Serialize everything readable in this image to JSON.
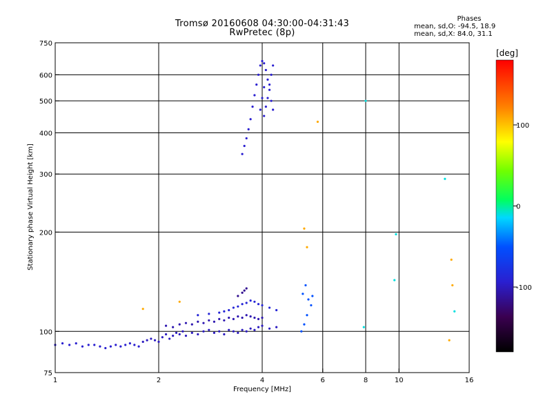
{
  "chart_data": {
    "type": "scatter",
    "title": "Tromsø 20160608 04:30:00-04:31:43",
    "subtitle": "RwPretec (8p)",
    "stats": {
      "heading": "Phases",
      "line_o": "mean, sd,O: -94.5, 18.9",
      "line_x": "mean, sd,X: 84.0, 31.1"
    },
    "xlabel": "Frequency [MHz]",
    "ylabel": "Stationary phase Virtual Height [km]",
    "x_scale": "log",
    "y_scale": "log",
    "xlim": [
      1,
      16
    ],
    "ylim": [
      75,
      750
    ],
    "x_ticks": [
      1,
      2,
      4,
      6,
      8,
      10,
      16
    ],
    "x_tick_labels": [
      "1",
      "2",
      "4",
      "6",
      "8",
      "10",
      "16"
    ],
    "y_ticks": [
      75,
      100,
      200,
      300,
      400,
      500,
      600,
      750
    ],
    "y_tick_labels": [
      "75",
      "100",
      "200",
      "300",
      "400",
      "500",
      "600",
      "750"
    ],
    "grid": true,
    "colorbar": {
      "label": "[deg]",
      "range": [
        -180,
        180
      ],
      "ticks": [
        100,
        0,
        -100
      ],
      "tick_labels": [
        "100",
        "0",
        "-100"
      ]
    },
    "series": [
      {
        "points": [
          [
            1.0,
            91
          ],
          [
            1.05,
            92
          ],
          [
            1.1,
            91
          ],
          [
            1.15,
            92
          ],
          [
            1.2,
            90
          ],
          [
            1.25,
            91
          ],
          [
            1.3,
            91
          ],
          [
            1.35,
            90
          ],
          [
            1.4,
            89
          ],
          [
            1.45,
            90
          ],
          [
            1.5,
            91
          ],
          [
            1.55,
            90
          ],
          [
            1.6,
            91
          ],
          [
            1.65,
            92
          ],
          [
            1.7,
            91
          ],
          [
            1.75,
            90
          ]
        ],
        "phase": -100
      },
      {
        "points": [
          [
            1.8,
            93
          ],
          [
            1.85,
            94
          ],
          [
            1.9,
            95
          ],
          [
            1.95,
            94
          ],
          [
            2.0,
            93
          ],
          [
            2.05,
            96
          ],
          [
            2.1,
            98
          ],
          [
            2.15,
            95
          ],
          [
            2.2,
            97
          ],
          [
            2.25,
            99
          ],
          [
            2.3,
            98
          ],
          [
            2.35,
            100
          ],
          [
            2.4,
            97
          ],
          [
            2.5,
            99
          ],
          [
            2.6,
            98
          ],
          [
            2.7,
            100
          ],
          [
            2.8,
            101
          ],
          [
            2.9,
            99
          ],
          [
            3.0,
            100
          ],
          [
            3.1,
            98
          ],
          [
            3.2,
            101
          ],
          [
            3.3,
            100
          ],
          [
            3.4,
            99
          ],
          [
            3.5,
            101
          ],
          [
            3.6,
            100
          ],
          [
            3.7,
            102
          ],
          [
            3.8,
            101
          ],
          [
            3.9,
            103
          ],
          [
            4.0,
            104
          ],
          [
            4.2,
            102
          ],
          [
            4.4,
            103
          ]
        ],
        "phase": -105
      },
      {
        "points": [
          [
            2.1,
            104
          ],
          [
            2.2,
            103
          ],
          [
            2.3,
            105
          ],
          [
            2.4,
            106
          ],
          [
            2.5,
            105
          ],
          [
            2.6,
            107
          ],
          [
            2.7,
            106
          ],
          [
            2.8,
            108
          ],
          [
            2.9,
            107
          ],
          [
            3.0,
            109
          ],
          [
            3.1,
            108
          ],
          [
            3.2,
            110
          ],
          [
            3.3,
            109
          ],
          [
            3.4,
            111
          ],
          [
            3.5,
            110
          ],
          [
            3.6,
            112
          ],
          [
            3.7,
            111
          ],
          [
            3.8,
            110
          ],
          [
            3.9,
            109
          ],
          [
            4.0,
            110
          ]
        ],
        "phase": -110
      },
      {
        "points": [
          [
            2.6,
            112
          ],
          [
            2.8,
            113
          ],
          [
            3.0,
            114
          ],
          [
            3.1,
            115
          ],
          [
            3.2,
            116
          ],
          [
            3.3,
            118
          ],
          [
            3.4,
            119
          ],
          [
            3.5,
            121
          ],
          [
            3.6,
            122
          ],
          [
            3.7,
            124
          ],
          [
            3.8,
            123
          ],
          [
            3.9,
            121
          ],
          [
            4.0,
            120
          ],
          [
            4.2,
            118
          ],
          [
            4.4,
            116
          ]
        ],
        "phase": -95
      },
      {
        "points": [
          [
            3.4,
            128
          ],
          [
            3.5,
            131
          ],
          [
            3.55,
            133
          ],
          [
            3.6,
            135
          ]
        ],
        "phase": -120
      },
      {
        "points": [
          [
            3.5,
            345
          ],
          [
            3.55,
            365
          ],
          [
            3.6,
            385
          ],
          [
            3.65,
            410
          ],
          [
            3.7,
            440
          ],
          [
            3.75,
            480
          ],
          [
            3.8,
            520
          ],
          [
            3.85,
            560
          ],
          [
            3.9,
            600
          ],
          [
            3.95,
            640
          ],
          [
            4.0,
            660
          ],
          [
            4.05,
            650
          ],
          [
            4.1,
            620
          ],
          [
            4.15,
            580
          ],
          [
            4.2,
            540
          ],
          [
            4.25,
            500
          ],
          [
            4.3,
            470
          ],
          [
            4.05,
            450
          ],
          [
            4.1,
            480
          ],
          [
            4.15,
            510
          ],
          [
            4.2,
            560
          ],
          [
            4.25,
            600
          ],
          [
            4.3,
            640
          ],
          [
            3.95,
            470
          ],
          [
            4.0,
            510
          ],
          [
            4.05,
            550
          ]
        ],
        "phase": -100
      },
      {
        "points": [
          [
            5.2,
            100
          ],
          [
            5.3,
            105
          ],
          [
            5.4,
            112
          ],
          [
            5.25,
            130
          ],
          [
            5.35,
            138
          ],
          [
            5.45,
            125
          ],
          [
            5.55,
            120
          ],
          [
            5.6,
            128
          ]
        ],
        "phase": -60
      },
      {
        "points": [
          [
            2.3,
            123
          ],
          [
            1.8,
            117
          ],
          [
            5.8,
            432
          ],
          [
            5.3,
            205
          ],
          [
            5.4,
            180
          ],
          [
            14.3,
            138
          ],
          [
            14.0,
            94
          ],
          [
            14.2,
            165
          ]
        ],
        "phase": 120
      },
      {
        "points": [
          [
            8.0,
            500
          ],
          [
            7.9,
            103
          ],
          [
            9.8,
            197
          ],
          [
            14.5,
            115
          ],
          [
            13.6,
            290
          ],
          [
            9.7,
            143
          ]
        ],
        "phase": -20
      }
    ]
  }
}
